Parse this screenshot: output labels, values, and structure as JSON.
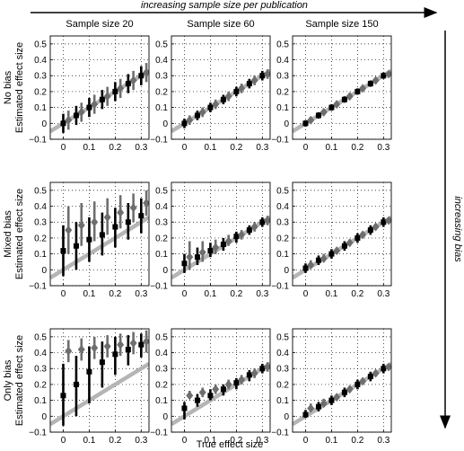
{
  "figure": {
    "top_arrow_label": "increasing sample size per publication",
    "right_arrow_label": "increasing bias",
    "shared_xlabel": "True effect size"
  },
  "axes": {
    "xlim": [
      -0.05,
      0.33
    ],
    "ylim": [
      -0.1,
      0.55
    ],
    "xticks": [
      "0",
      "0.1",
      "0.2",
      "0.3"
    ],
    "yticks": [
      "0.5",
      "0.4",
      "0.3",
      "0.2",
      "0.1",
      "0",
      "−0.1"
    ],
    "grid": "dotted",
    "identity_line_color": "#b5b5b5"
  },
  "colors": {
    "marker_dark": "#000000",
    "marker_gray": "#6e6e6e",
    "identity_line": "#b5b5b5"
  },
  "rows": [
    {
      "title": "No bias",
      "ylabel": "Estimated effect size"
    },
    {
      "title": "Mixed bias",
      "ylabel": "Estimated effect size"
    },
    {
      "title": "Only bias",
      "ylabel": "Estimated effect size"
    }
  ],
  "columns": [
    {
      "title": "Sample size 20"
    },
    {
      "title": "Sample size 60"
    },
    {
      "title": "Sample size 150"
    }
  ],
  "chart_data": [
    {
      "type": "scatter",
      "row": 0,
      "col": 0,
      "title": "Sample size 20",
      "ylabel": "Estimated effect size",
      "xlim": [
        -0.05,
        0.33
      ],
      "ylim": [
        -0.1,
        0.55
      ],
      "squares": [
        {
          "x": 0.0,
          "y": 0.0,
          "lo": -0.06,
          "hi": 0.06
        },
        {
          "x": 0.05,
          "y": 0.05,
          "lo": -0.01,
          "hi": 0.11
        },
        {
          "x": 0.1,
          "y": 0.1,
          "lo": 0.04,
          "hi": 0.16
        },
        {
          "x": 0.15,
          "y": 0.15,
          "lo": 0.09,
          "hi": 0.21
        },
        {
          "x": 0.2,
          "y": 0.2,
          "lo": 0.14,
          "hi": 0.26
        },
        {
          "x": 0.25,
          "y": 0.25,
          "lo": 0.19,
          "hi": 0.31
        },
        {
          "x": 0.3,
          "y": 0.3,
          "lo": 0.24,
          "hi": 0.36
        }
      ],
      "diamonds": [
        {
          "x": 0.02,
          "y": 0.02,
          "lo": -0.04,
          "hi": 0.08
        },
        {
          "x": 0.07,
          "y": 0.07,
          "lo": 0.01,
          "hi": 0.13
        },
        {
          "x": 0.12,
          "y": 0.12,
          "lo": 0.06,
          "hi": 0.18
        },
        {
          "x": 0.17,
          "y": 0.17,
          "lo": 0.11,
          "hi": 0.23
        },
        {
          "x": 0.22,
          "y": 0.22,
          "lo": 0.16,
          "hi": 0.28
        },
        {
          "x": 0.27,
          "y": 0.27,
          "lo": 0.21,
          "hi": 0.33
        },
        {
          "x": 0.32,
          "y": 0.32,
          "lo": 0.26,
          "hi": 0.38
        }
      ]
    },
    {
      "type": "scatter",
      "row": 0,
      "col": 1,
      "title": "Sample size 60",
      "xlim": [
        -0.05,
        0.33
      ],
      "ylim": [
        -0.1,
        0.55
      ],
      "squares": [
        {
          "x": 0.0,
          "y": 0.0,
          "lo": -0.03,
          "hi": 0.03
        },
        {
          "x": 0.05,
          "y": 0.05,
          "lo": 0.02,
          "hi": 0.08
        },
        {
          "x": 0.1,
          "y": 0.1,
          "lo": 0.07,
          "hi": 0.13
        },
        {
          "x": 0.15,
          "y": 0.15,
          "lo": 0.12,
          "hi": 0.18
        },
        {
          "x": 0.2,
          "y": 0.2,
          "lo": 0.17,
          "hi": 0.23
        },
        {
          "x": 0.25,
          "y": 0.25,
          "lo": 0.22,
          "hi": 0.28
        },
        {
          "x": 0.3,
          "y": 0.3,
          "lo": 0.27,
          "hi": 0.33
        }
      ],
      "diamonds": [
        {
          "x": 0.02,
          "y": 0.02,
          "lo": -0.01,
          "hi": 0.05
        },
        {
          "x": 0.07,
          "y": 0.07,
          "lo": 0.04,
          "hi": 0.1
        },
        {
          "x": 0.12,
          "y": 0.12,
          "lo": 0.09,
          "hi": 0.15
        },
        {
          "x": 0.17,
          "y": 0.17,
          "lo": 0.14,
          "hi": 0.2
        },
        {
          "x": 0.22,
          "y": 0.22,
          "lo": 0.19,
          "hi": 0.25
        },
        {
          "x": 0.27,
          "y": 0.27,
          "lo": 0.24,
          "hi": 0.3
        },
        {
          "x": 0.32,
          "y": 0.31,
          "lo": 0.28,
          "hi": 0.34
        }
      ]
    },
    {
      "type": "scatter",
      "row": 0,
      "col": 2,
      "title": "Sample size 150",
      "xlim": [
        -0.05,
        0.33
      ],
      "ylim": [
        -0.1,
        0.55
      ],
      "squares": [
        {
          "x": 0.0,
          "y": 0.0,
          "lo": -0.02,
          "hi": 0.02
        },
        {
          "x": 0.05,
          "y": 0.05,
          "lo": 0.03,
          "hi": 0.07
        },
        {
          "x": 0.1,
          "y": 0.1,
          "lo": 0.08,
          "hi": 0.12
        },
        {
          "x": 0.15,
          "y": 0.15,
          "lo": 0.13,
          "hi": 0.17
        },
        {
          "x": 0.2,
          "y": 0.2,
          "lo": 0.18,
          "hi": 0.22
        },
        {
          "x": 0.25,
          "y": 0.25,
          "lo": 0.23,
          "hi": 0.27
        },
        {
          "x": 0.3,
          "y": 0.3,
          "lo": 0.28,
          "hi": 0.32
        }
      ],
      "diamonds": [
        {
          "x": 0.02,
          "y": 0.02,
          "lo": 0.0,
          "hi": 0.04
        },
        {
          "x": 0.07,
          "y": 0.07,
          "lo": 0.05,
          "hi": 0.09
        },
        {
          "x": 0.12,
          "y": 0.12,
          "lo": 0.1,
          "hi": 0.14
        },
        {
          "x": 0.17,
          "y": 0.17,
          "lo": 0.15,
          "hi": 0.19
        },
        {
          "x": 0.22,
          "y": 0.22,
          "lo": 0.2,
          "hi": 0.24
        },
        {
          "x": 0.27,
          "y": 0.27,
          "lo": 0.25,
          "hi": 0.29
        },
        {
          "x": 0.32,
          "y": 0.31,
          "lo": 0.29,
          "hi": 0.33
        }
      ]
    },
    {
      "type": "scatter",
      "row": 1,
      "col": 0,
      "ylabel": "Estimated effect size",
      "xlim": [
        -0.05,
        0.33
      ],
      "ylim": [
        -0.1,
        0.55
      ],
      "squares": [
        {
          "x": 0.0,
          "y": 0.12,
          "lo": -0.04,
          "hi": 0.28
        },
        {
          "x": 0.05,
          "y": 0.15,
          "lo": 0.0,
          "hi": 0.3
        },
        {
          "x": 0.1,
          "y": 0.19,
          "lo": 0.05,
          "hi": 0.33
        },
        {
          "x": 0.15,
          "y": 0.22,
          "lo": 0.09,
          "hi": 0.36
        },
        {
          "x": 0.2,
          "y": 0.27,
          "lo": 0.14,
          "hi": 0.39
        },
        {
          "x": 0.25,
          "y": 0.3,
          "lo": 0.19,
          "hi": 0.42
        },
        {
          "x": 0.3,
          "y": 0.34,
          "lo": 0.23,
          "hi": 0.45
        }
      ],
      "diamonds": [
        {
          "x": 0.02,
          "y": 0.25,
          "lo": 0.1,
          "hi": 0.4
        },
        {
          "x": 0.07,
          "y": 0.28,
          "lo": 0.15,
          "hi": 0.42
        },
        {
          "x": 0.12,
          "y": 0.3,
          "lo": 0.18,
          "hi": 0.43
        },
        {
          "x": 0.17,
          "y": 0.33,
          "lo": 0.22,
          "hi": 0.45
        },
        {
          "x": 0.22,
          "y": 0.36,
          "lo": 0.26,
          "hi": 0.47
        },
        {
          "x": 0.27,
          "y": 0.39,
          "lo": 0.3,
          "hi": 0.48
        },
        {
          "x": 0.32,
          "y": 0.42,
          "lo": 0.34,
          "hi": 0.5
        }
      ]
    },
    {
      "type": "scatter",
      "row": 1,
      "col": 1,
      "xlim": [
        -0.05,
        0.33
      ],
      "ylim": [
        -0.1,
        0.55
      ],
      "squares": [
        {
          "x": 0.0,
          "y": 0.04,
          "lo": -0.02,
          "hi": 0.1
        },
        {
          "x": 0.05,
          "y": 0.08,
          "lo": 0.03,
          "hi": 0.14
        },
        {
          "x": 0.1,
          "y": 0.12,
          "lo": 0.08,
          "hi": 0.17
        },
        {
          "x": 0.15,
          "y": 0.16,
          "lo": 0.12,
          "hi": 0.2
        },
        {
          "x": 0.2,
          "y": 0.21,
          "lo": 0.17,
          "hi": 0.24
        },
        {
          "x": 0.25,
          "y": 0.25,
          "lo": 0.22,
          "hi": 0.28
        },
        {
          "x": 0.3,
          "y": 0.3,
          "lo": 0.27,
          "hi": 0.33
        }
      ],
      "diamonds": [
        {
          "x": 0.02,
          "y": 0.08,
          "lo": 0.0,
          "hi": 0.18
        },
        {
          "x": 0.07,
          "y": 0.11,
          "lo": 0.05,
          "hi": 0.18
        },
        {
          "x": 0.12,
          "y": 0.14,
          "lo": 0.1,
          "hi": 0.19
        },
        {
          "x": 0.17,
          "y": 0.18,
          "lo": 0.15,
          "hi": 0.22
        },
        {
          "x": 0.22,
          "y": 0.22,
          "lo": 0.19,
          "hi": 0.25
        },
        {
          "x": 0.27,
          "y": 0.27,
          "lo": 0.24,
          "hi": 0.3
        },
        {
          "x": 0.32,
          "y": 0.31,
          "lo": 0.28,
          "hi": 0.34
        }
      ]
    },
    {
      "type": "scatter",
      "row": 1,
      "col": 2,
      "xlim": [
        -0.05,
        0.33
      ],
      "ylim": [
        -0.1,
        0.55
      ],
      "squares": [
        {
          "x": 0.0,
          "y": 0.01,
          "lo": -0.02,
          "hi": 0.04
        },
        {
          "x": 0.05,
          "y": 0.06,
          "lo": 0.03,
          "hi": 0.09
        },
        {
          "x": 0.1,
          "y": 0.1,
          "lo": 0.07,
          "hi": 0.13
        },
        {
          "x": 0.15,
          "y": 0.15,
          "lo": 0.12,
          "hi": 0.18
        },
        {
          "x": 0.2,
          "y": 0.2,
          "lo": 0.17,
          "hi": 0.23
        },
        {
          "x": 0.25,
          "y": 0.25,
          "lo": 0.22,
          "hi": 0.28
        },
        {
          "x": 0.3,
          "y": 0.3,
          "lo": 0.27,
          "hi": 0.33
        }
      ],
      "diamonds": [
        {
          "x": 0.02,
          "y": 0.03,
          "lo": 0.01,
          "hi": 0.06
        },
        {
          "x": 0.07,
          "y": 0.07,
          "lo": 0.05,
          "hi": 0.1
        },
        {
          "x": 0.12,
          "y": 0.12,
          "lo": 0.1,
          "hi": 0.14
        },
        {
          "x": 0.17,
          "y": 0.17,
          "lo": 0.15,
          "hi": 0.19
        },
        {
          "x": 0.22,
          "y": 0.22,
          "lo": 0.2,
          "hi": 0.24
        },
        {
          "x": 0.27,
          "y": 0.27,
          "lo": 0.25,
          "hi": 0.29
        },
        {
          "x": 0.32,
          "y": 0.31,
          "lo": 0.29,
          "hi": 0.33
        }
      ]
    },
    {
      "type": "scatter",
      "row": 2,
      "col": 0,
      "ylabel": "Estimated effect size",
      "xlim": [
        -0.05,
        0.33
      ],
      "ylim": [
        -0.1,
        0.55
      ],
      "squares": [
        {
          "x": 0.0,
          "y": 0.13,
          "lo": -0.06,
          "hi": 0.33
        },
        {
          "x": 0.05,
          "y": 0.2,
          "lo": 0.0,
          "hi": 0.38
        },
        {
          "x": 0.1,
          "y": 0.28,
          "lo": 0.08,
          "hi": 0.44
        },
        {
          "x": 0.15,
          "y": 0.34,
          "lo": 0.18,
          "hi": 0.47
        },
        {
          "x": 0.2,
          "y": 0.39,
          "lo": 0.26,
          "hi": 0.5
        },
        {
          "x": 0.25,
          "y": 0.42,
          "lo": 0.32,
          "hi": 0.51
        },
        {
          "x": 0.3,
          "y": 0.45,
          "lo": 0.37,
          "hi": 0.52
        }
      ],
      "diamonds": [
        {
          "x": 0.02,
          "y": 0.41,
          "lo": 0.34,
          "hi": 0.48
        },
        {
          "x": 0.07,
          "y": 0.42,
          "lo": 0.35,
          "hi": 0.49
        },
        {
          "x": 0.12,
          "y": 0.43,
          "lo": 0.36,
          "hi": 0.5
        },
        {
          "x": 0.17,
          "y": 0.44,
          "lo": 0.37,
          "hi": 0.51
        },
        {
          "x": 0.22,
          "y": 0.45,
          "lo": 0.38,
          "hi": 0.52
        },
        {
          "x": 0.27,
          "y": 0.46,
          "lo": 0.39,
          "hi": 0.53
        },
        {
          "x": 0.32,
          "y": 0.47,
          "lo": 0.4,
          "hi": 0.54
        }
      ]
    },
    {
      "type": "scatter",
      "row": 2,
      "col": 1,
      "xlim": [
        -0.05,
        0.33
      ],
      "ylim": [
        -0.1,
        0.55
      ],
      "squares": [
        {
          "x": 0.0,
          "y": 0.05,
          "lo": -0.02,
          "hi": 0.09
        },
        {
          "x": 0.05,
          "y": 0.1,
          "lo": 0.06,
          "hi": 0.14
        },
        {
          "x": 0.1,
          "y": 0.13,
          "lo": 0.1,
          "hi": 0.17
        },
        {
          "x": 0.15,
          "y": 0.17,
          "lo": 0.13,
          "hi": 0.2
        },
        {
          "x": 0.2,
          "y": 0.21,
          "lo": 0.17,
          "hi": 0.24
        },
        {
          "x": 0.25,
          "y": 0.26,
          "lo": 0.22,
          "hi": 0.29
        },
        {
          "x": 0.3,
          "y": 0.3,
          "lo": 0.27,
          "hi": 0.33
        }
      ],
      "diamonds": [
        {
          "x": 0.02,
          "y": 0.13,
          "lo": 0.11,
          "hi": 0.16
        },
        {
          "x": 0.07,
          "y": 0.15,
          "lo": 0.12,
          "hi": 0.18
        },
        {
          "x": 0.12,
          "y": 0.17,
          "lo": 0.14,
          "hi": 0.2
        },
        {
          "x": 0.17,
          "y": 0.2,
          "lo": 0.17,
          "hi": 0.23
        },
        {
          "x": 0.22,
          "y": 0.23,
          "lo": 0.2,
          "hi": 0.26
        },
        {
          "x": 0.27,
          "y": 0.27,
          "lo": 0.24,
          "hi": 0.3
        },
        {
          "x": 0.32,
          "y": 0.31,
          "lo": 0.28,
          "hi": 0.34
        }
      ]
    },
    {
      "type": "scatter",
      "row": 2,
      "col": 2,
      "xlim": [
        -0.05,
        0.33
      ],
      "ylim": [
        -0.1,
        0.55
      ],
      "squares": [
        {
          "x": 0.0,
          "y": 0.01,
          "lo": -0.01,
          "hi": 0.04
        },
        {
          "x": 0.05,
          "y": 0.06,
          "lo": 0.03,
          "hi": 0.09
        },
        {
          "x": 0.1,
          "y": 0.1,
          "lo": 0.07,
          "hi": 0.13
        },
        {
          "x": 0.15,
          "y": 0.15,
          "lo": 0.12,
          "hi": 0.18
        },
        {
          "x": 0.2,
          "y": 0.2,
          "lo": 0.17,
          "hi": 0.23
        },
        {
          "x": 0.25,
          "y": 0.25,
          "lo": 0.22,
          "hi": 0.28
        },
        {
          "x": 0.3,
          "y": 0.3,
          "lo": 0.27,
          "hi": 0.33
        }
      ],
      "diamonds": [
        {
          "x": 0.02,
          "y": 0.05,
          "lo": 0.03,
          "hi": 0.08
        },
        {
          "x": 0.07,
          "y": 0.08,
          "lo": 0.06,
          "hi": 0.11
        },
        {
          "x": 0.12,
          "y": 0.12,
          "lo": 0.1,
          "hi": 0.14
        },
        {
          "x": 0.17,
          "y": 0.17,
          "lo": 0.15,
          "hi": 0.19
        },
        {
          "x": 0.22,
          "y": 0.22,
          "lo": 0.2,
          "hi": 0.24
        },
        {
          "x": 0.27,
          "y": 0.27,
          "lo": 0.25,
          "hi": 0.29
        },
        {
          "x": 0.32,
          "y": 0.31,
          "lo": 0.29,
          "hi": 0.33
        }
      ]
    }
  ]
}
